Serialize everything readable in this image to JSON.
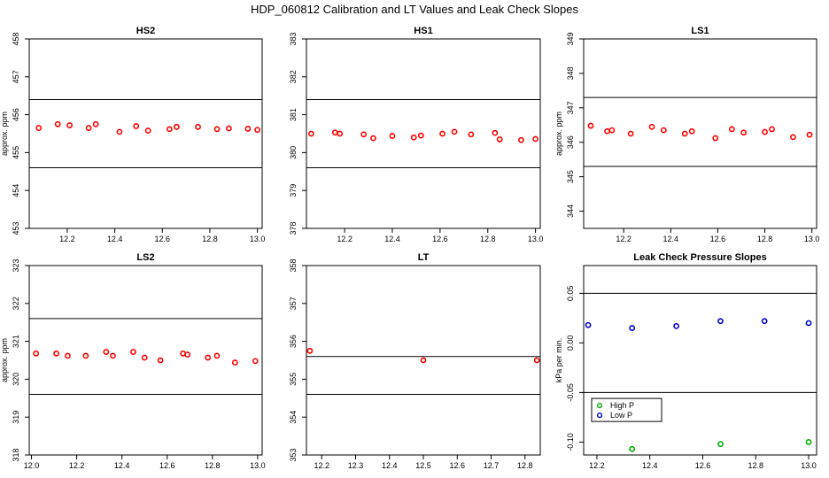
{
  "figure": {
    "title": "HDP_060812  Calibration and LT Values and Leak Check Slopes"
  },
  "chart_data": [
    {
      "type": "scatter",
      "title": "HS2",
      "ylabel": "approx. ppm",
      "xlim": [
        12.04,
        13.02
      ],
      "ylim": [
        453,
        458
      ],
      "xticks": [
        12.2,
        12.4,
        12.6,
        12.8,
        13.0
      ],
      "xtick_labels": [
        "12.2",
        "12.4",
        "12.6",
        "12.8",
        "13.0"
      ],
      "yticks": [
        453,
        454,
        455,
        456,
        457,
        458
      ],
      "ytick_labels": [
        "453",
        "454",
        "455",
        "456",
        "457",
        "458"
      ],
      "hlines": [
        456.4,
        454.6
      ],
      "series": [
        {
          "color": "#ff0000",
          "x": [
            12.08,
            12.16,
            12.21,
            12.29,
            12.32,
            12.42,
            12.49,
            12.54,
            12.63,
            12.66,
            12.75,
            12.83,
            12.88,
            12.96,
            13.0
          ],
          "y": [
            455.65,
            455.75,
            455.72,
            455.65,
            455.75,
            455.55,
            455.7,
            455.58,
            455.62,
            455.68,
            455.68,
            455.62,
            455.64,
            455.63,
            455.6
          ]
        }
      ]
    },
    {
      "type": "scatter",
      "title": "HS1",
      "ylabel": "",
      "xlim": [
        12.04,
        13.02
      ],
      "ylim": [
        378,
        383
      ],
      "xticks": [
        12.2,
        12.4,
        12.6,
        12.8,
        13.0
      ],
      "xtick_labels": [
        "12.2",
        "12.4",
        "12.6",
        "12.8",
        "13.0"
      ],
      "yticks": [
        378,
        379,
        380,
        381,
        382,
        383
      ],
      "ytick_labels": [
        "378",
        "379",
        "380",
        "381",
        "382",
        "383"
      ],
      "hlines": [
        381.4,
        379.6
      ],
      "series": [
        {
          "color": "#ff0000",
          "x": [
            12.06,
            12.16,
            12.18,
            12.28,
            12.32,
            12.4,
            12.49,
            12.52,
            12.61,
            12.66,
            12.73,
            12.83,
            12.85,
            12.94,
            13.0
          ],
          "y": [
            380.5,
            380.53,
            380.5,
            380.48,
            380.38,
            380.44,
            380.4,
            380.45,
            380.5,
            380.55,
            380.48,
            380.52,
            380.35,
            380.33,
            380.36
          ]
        }
      ]
    },
    {
      "type": "scatter",
      "title": "LS1",
      "ylabel": "approx. ppm",
      "xlim": [
        12.03,
        13.02
      ],
      "ylim": [
        343.5,
        349
      ],
      "xticks": [
        12.2,
        12.4,
        12.6,
        12.8,
        13.0
      ],
      "xtick_labels": [
        "12.2",
        "12.4",
        "12.6",
        "12.8",
        "13.0"
      ],
      "yticks": [
        344,
        345,
        346,
        347,
        348,
        349
      ],
      "ytick_labels": [
        "344",
        "345",
        "346",
        "347",
        "348",
        "349"
      ],
      "hlines": [
        347.3,
        345.3
      ],
      "series": [
        {
          "color": "#ff0000",
          "x": [
            12.06,
            12.13,
            12.15,
            12.23,
            12.32,
            12.37,
            12.46,
            12.49,
            12.59,
            12.66,
            12.71,
            12.8,
            12.83,
            12.92,
            12.99
          ],
          "y": [
            346.48,
            346.32,
            346.35,
            346.25,
            346.45,
            346.35,
            346.25,
            346.32,
            346.12,
            346.38,
            346.28,
            346.3,
            346.38,
            346.15,
            346.22
          ]
        }
      ]
    },
    {
      "type": "scatter",
      "title": "LS2",
      "ylabel": "approx. ppm",
      "xlim": [
        11.99,
        13.02
      ],
      "ylim": [
        318,
        323
      ],
      "xticks": [
        12.0,
        12.2,
        12.4,
        12.6,
        12.8,
        13.0
      ],
      "xtick_labels": [
        "12.0",
        "12.2",
        "12.4",
        "12.6",
        "12.8",
        "13.0"
      ],
      "yticks": [
        318,
        319,
        320,
        321,
        322,
        323
      ],
      "ytick_labels": [
        "318",
        "319",
        "320",
        "321",
        "322",
        "323"
      ],
      "hlines": [
        321.6,
        319.6
      ],
      "series": [
        {
          "color": "#ff0000",
          "x": [
            12.02,
            12.11,
            12.16,
            12.24,
            12.33,
            12.36,
            12.45,
            12.5,
            12.57,
            12.67,
            12.69,
            12.78,
            12.82,
            12.9,
            12.99
          ],
          "y": [
            320.68,
            320.68,
            320.62,
            320.62,
            320.72,
            320.62,
            320.72,
            320.57,
            320.5,
            320.68,
            320.65,
            320.57,
            320.62,
            320.44,
            320.48
          ]
        }
      ]
    },
    {
      "type": "scatter",
      "title": "LT",
      "ylabel": "",
      "xlim": [
        12.155,
        12.845
      ],
      "ylim": [
        353,
        358
      ],
      "xticks": [
        12.2,
        12.3,
        12.4,
        12.5,
        12.6,
        12.7,
        12.8
      ],
      "xtick_labels": [
        "12.2",
        "12.3",
        "12.4",
        "12.5",
        "12.6",
        "12.7",
        "12.8"
      ],
      "yticks": [
        353,
        354,
        355,
        356,
        357,
        358
      ],
      "ytick_labels": [
        "353",
        "354",
        "355",
        "356",
        "357",
        "358"
      ],
      "hlines": [
        355.6,
        354.6
      ],
      "series": [
        {
          "color": "#ff0000",
          "x": [
            12.165,
            12.5,
            12.835
          ],
          "y": [
            355.75,
            355.5,
            355.5
          ]
        }
      ]
    },
    {
      "type": "scatter",
      "title": "Leak Check Pressure Slopes",
      "ylabel": "kPa per min.",
      "xlim": [
        12.15,
        13.03
      ],
      "ylim": [
        -0.113,
        0.078
      ],
      "xticks": [
        12.2,
        12.4,
        12.6,
        12.8,
        13.0
      ],
      "xtick_labels": [
        "12.2",
        "12.4",
        "12.6",
        "12.8",
        "13.0"
      ],
      "yticks": [
        -0.1,
        -0.05,
        0.0,
        0.05
      ],
      "ytick_labels": [
        "-0.10",
        "-0.05",
        "0.00",
        "0.05"
      ],
      "hlines": [
        0.05,
        -0.05
      ],
      "legend": {
        "position": "bottom-left",
        "entries": [
          "High P",
          "Low P"
        ]
      },
      "series": [
        {
          "name": "High P",
          "color": "#00b000",
          "x": [
            12.333,
            12.667,
            13.0
          ],
          "y": [
            -0.107,
            -0.102,
            -0.1
          ]
        },
        {
          "name": "Low P",
          "color": "#0000cc",
          "x": [
            12.167,
            12.333,
            12.5,
            12.667,
            12.833,
            13.0
          ],
          "y": [
            0.018,
            0.015,
            0.017,
            0.022,
            0.022,
            0.02
          ]
        }
      ]
    }
  ]
}
